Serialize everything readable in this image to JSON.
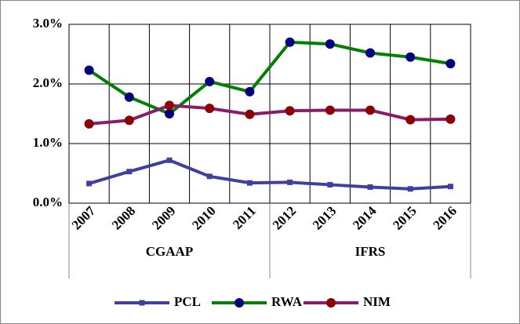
{
  "chart_data": {
    "type": "line",
    "categories": [
      "2007",
      "2008",
      "2009",
      "2010",
      "2011",
      "2012",
      "2013",
      "2014",
      "2015",
      "2016"
    ],
    "groups": [
      {
        "name": "CGAAP",
        "count": 5
      },
      {
        "name": "IFRS",
        "count": 5
      }
    ],
    "series": [
      {
        "name": "PCL",
        "color": "#3f3f9f",
        "marker": "square",
        "marker_color": "#3f3f9f",
        "values": [
          0.33,
          0.53,
          0.72,
          0.45,
          0.34,
          0.35,
          0.31,
          0.27,
          0.24,
          0.28
        ]
      },
      {
        "name": "RWA",
        "color": "#008000",
        "marker": "circle",
        "marker_color": "#00007f",
        "values": [
          2.23,
          1.78,
          1.5,
          2.04,
          1.87,
          2.7,
          2.67,
          2.52,
          2.45,
          2.34
        ]
      },
      {
        "name": "NIM",
        "color": "#8b1a6b",
        "marker": "circle",
        "marker_color": "#8b0000",
        "values": [
          1.33,
          1.39,
          1.64,
          1.59,
          1.49,
          1.55,
          1.56,
          1.56,
          1.4,
          1.41
        ]
      }
    ],
    "ylim": [
      0,
      3
    ],
    "yticks": [
      {
        "value": 0,
        "label": "0.0%"
      },
      {
        "value": 1,
        "label": "1.0%"
      },
      {
        "value": 2,
        "label": "2.0%"
      },
      {
        "value": 3,
        "label": "3.0%"
      }
    ],
    "grid": true,
    "legend": "bottom"
  }
}
